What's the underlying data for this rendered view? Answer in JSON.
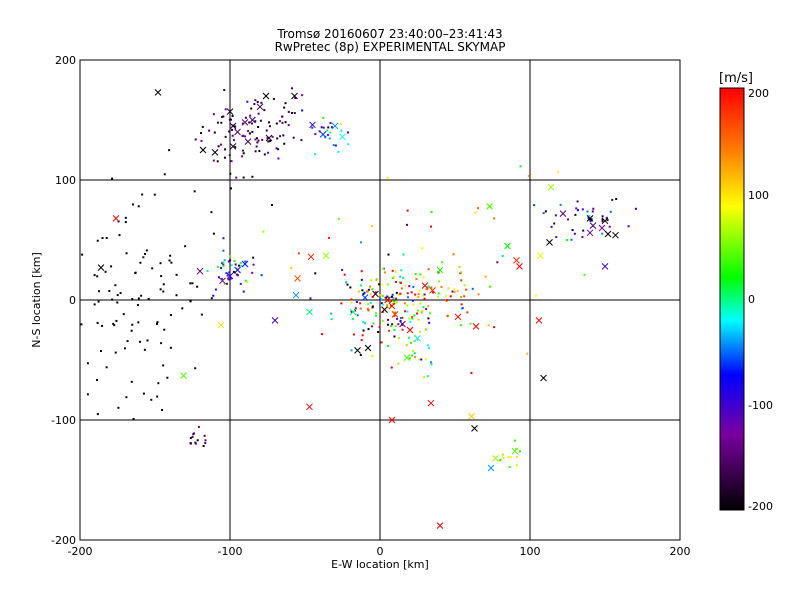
{
  "chart_data": {
    "type": "scatter",
    "title": "Tromsø 20160607 23:40:00–23:41:43",
    "subtitle": "RwPretec (8p) EXPERIMENTAL SKYMAP",
    "xlabel": "E-W location [km]",
    "ylabel": "N-S location [km]",
    "xlim": [
      -200,
      200
    ],
    "ylim": [
      -200,
      200
    ],
    "x_ticks": [
      "-200",
      "-100",
      "0",
      "100",
      "200"
    ],
    "y_ticks": [
      "-200",
      "-100",
      "0",
      "100",
      "200"
    ],
    "grid_lines": [
      -100,
      0,
      100
    ],
    "colorbar": {
      "unit_label": "[m/s]",
      "range": [
        -200,
        200
      ],
      "ticks": [
        "200",
        "100",
        "0",
        "-100",
        "-200"
      ],
      "scale": "black-purple-blue-cyan-green-yellow-red"
    },
    "markers": {
      "dot": "small point",
      "cross": "x"
    },
    "points": [
      {
        "x": -148,
        "y": 173,
        "v": -200,
        "m": "x"
      },
      {
        "x": -100,
        "y": 157,
        "v": -180,
        "m": "x"
      },
      {
        "x": -98,
        "y": 145,
        "v": -170,
        "m": "x"
      },
      {
        "x": -95,
        "y": 140,
        "v": -150,
        "m": "x"
      },
      {
        "x": -90,
        "y": 148,
        "v": -140,
        "m": "x"
      },
      {
        "x": -85,
        "y": 150,
        "v": -160,
        "m": "x"
      },
      {
        "x": -80,
        "y": 161,
        "v": -170,
        "m": "x"
      },
      {
        "x": -76,
        "y": 170,
        "v": -200,
        "m": "x"
      },
      {
        "x": -57,
        "y": 170,
        "v": -200,
        "m": "x"
      },
      {
        "x": -45,
        "y": 146,
        "v": -100,
        "m": "x"
      },
      {
        "x": -38,
        "y": 138,
        "v": -60,
        "m": "x"
      },
      {
        "x": -30,
        "y": 145,
        "v": -40,
        "m": "x"
      },
      {
        "x": -25,
        "y": 136,
        "v": -20,
        "m": "x"
      },
      {
        "x": -118,
        "y": 125,
        "v": -200,
        "m": "x"
      },
      {
        "x": -110,
        "y": 123,
        "v": -200,
        "m": "x"
      },
      {
        "x": -98,
        "y": 128,
        "v": -180,
        "m": "x"
      },
      {
        "x": -88,
        "y": 132,
        "v": -160,
        "m": "x"
      },
      {
        "x": -74,
        "y": 135,
        "v": -180,
        "m": "x"
      },
      {
        "x": -176,
        "y": 68,
        "v": 200,
        "m": "x"
      },
      {
        "x": -186,
        "y": 27,
        "v": -200,
        "m": "x"
      },
      {
        "x": -100,
        "y": 20,
        "v": -100,
        "m": "x"
      },
      {
        "x": -95,
        "y": 25,
        "v": -90,
        "m": "x"
      },
      {
        "x": -90,
        "y": 30,
        "v": -70,
        "m": "x"
      },
      {
        "x": -105,
        "y": 16,
        "v": -130,
        "m": "x"
      },
      {
        "x": -120,
        "y": 24,
        "v": -150,
        "m": "x"
      },
      {
        "x": -56,
        "y": 4,
        "v": -40,
        "m": "x"
      },
      {
        "x": -47,
        "y": -10,
        "v": 0,
        "m": "x"
      },
      {
        "x": -55,
        "y": 18,
        "v": 160,
        "m": "x"
      },
      {
        "x": -46,
        "y": 36,
        "v": 180,
        "m": "x"
      },
      {
        "x": -36,
        "y": 37,
        "v": 60,
        "m": "x"
      },
      {
        "x": -70,
        "y": -17,
        "v": -100,
        "m": "x"
      },
      {
        "x": -106,
        "y": -21,
        "v": 100,
        "m": "x"
      },
      {
        "x": -131,
        "y": -63,
        "v": 40,
        "m": "x"
      },
      {
        "x": -47,
        "y": -89,
        "v": 200,
        "m": "x"
      },
      {
        "x": -15,
        "y": -42,
        "v": -200,
        "m": "x"
      },
      {
        "x": -8,
        "y": -40,
        "v": -200,
        "m": "x"
      },
      {
        "x": 8,
        "y": -100,
        "v": 200,
        "m": "x"
      },
      {
        "x": 34,
        "y": -86,
        "v": 200,
        "m": "x"
      },
      {
        "x": 61,
        "y": -97,
        "v": 110,
        "m": "x"
      },
      {
        "x": 63,
        "y": -107,
        "v": -200,
        "m": "x"
      },
      {
        "x": 90,
        "y": -126,
        "v": 40,
        "m": "x"
      },
      {
        "x": 77,
        "y": -132,
        "v": 60,
        "m": "x"
      },
      {
        "x": 74,
        "y": -140,
        "v": -40,
        "m": "x"
      },
      {
        "x": 40,
        "y": -188,
        "v": 200,
        "m": "x"
      },
      {
        "x": 73,
        "y": 78,
        "v": 40,
        "m": "x"
      },
      {
        "x": 85,
        "y": 45,
        "v": 20,
        "m": "x"
      },
      {
        "x": 91,
        "y": 33,
        "v": 180,
        "m": "x"
      },
      {
        "x": 93,
        "y": 28,
        "v": 200,
        "m": "x"
      },
      {
        "x": 114,
        "y": 94,
        "v": 60,
        "m": "x"
      },
      {
        "x": 107,
        "y": 37,
        "v": 80,
        "m": "x"
      },
      {
        "x": 113,
        "y": 48,
        "v": -200,
        "m": "x"
      },
      {
        "x": 122,
        "y": 72,
        "v": -150,
        "m": "x"
      },
      {
        "x": 140,
        "y": 68,
        "v": -200,
        "m": "x"
      },
      {
        "x": 142,
        "y": 62,
        "v": -160,
        "m": "x"
      },
      {
        "x": 148,
        "y": 60,
        "v": -130,
        "m": "x"
      },
      {
        "x": 150,
        "y": 66,
        "v": -200,
        "m": "x"
      },
      {
        "x": 152,
        "y": 55,
        "v": -200,
        "m": "x"
      },
      {
        "x": 157,
        "y": 54,
        "v": -200,
        "m": "x"
      },
      {
        "x": 140,
        "y": 56,
        "v": -120,
        "m": "x"
      },
      {
        "x": 150,
        "y": 28,
        "v": -110,
        "m": "x"
      },
      {
        "x": 106,
        "y": -17,
        "v": 200,
        "m": "x"
      },
      {
        "x": 109,
        "y": -65,
        "v": -200,
        "m": "x"
      },
      {
        "x": 5,
        "y": 0,
        "v": 200,
        "m": "x"
      },
      {
        "x": 8,
        "y": -5,
        "v": 190,
        "m": "x"
      },
      {
        "x": 10,
        "y": -12,
        "v": 180,
        "m": "x"
      },
      {
        "x": 3,
        "y": -8,
        "v": -200,
        "m": "x"
      },
      {
        "x": -3,
        "y": 5,
        "v": -180,
        "m": "x"
      },
      {
        "x": 15,
        "y": -20,
        "v": -140,
        "m": "x"
      },
      {
        "x": 20,
        "y": -25,
        "v": 200,
        "m": "x"
      },
      {
        "x": 30,
        "y": 12,
        "v": 200,
        "m": "x"
      },
      {
        "x": 35,
        "y": 8,
        "v": 180,
        "m": "x"
      },
      {
        "x": 52,
        "y": -14,
        "v": 200,
        "m": "x"
      },
      {
        "x": 64,
        "y": -22,
        "v": 200,
        "m": "x"
      },
      {
        "x": 18,
        "y": -48,
        "v": 40,
        "m": "x"
      },
      {
        "x": -10,
        "y": 2,
        "v": -60,
        "m": "x"
      },
      {
        "x": -18,
        "y": -10,
        "v": 0,
        "m": "x"
      },
      {
        "x": 25,
        "y": -32,
        "v": -20,
        "m": "x"
      },
      {
        "x": 40,
        "y": 25,
        "v": 30,
        "m": "x"
      }
    ],
    "dot_clusters": [
      {
        "cx": -95,
        "cy": 135,
        "sx": 14,
        "sy": 16,
        "n": 70,
        "v": -175,
        "vs": 25
      },
      {
        "cx": -70,
        "cy": 150,
        "sx": 12,
        "sy": 14,
        "n": 35,
        "v": -160,
        "vs": 40
      },
      {
        "cx": -35,
        "cy": 140,
        "sx": 8,
        "sy": 8,
        "n": 25,
        "v": -60,
        "vs": 60
      },
      {
        "cx": -165,
        "cy": 0,
        "sx": 24,
        "sy": 45,
        "n": 110,
        "v": -200,
        "vs": 8
      },
      {
        "cx": -100,
        "cy": 22,
        "sx": 10,
        "sy": 9,
        "n": 45,
        "v": -70,
        "vs": 80
      },
      {
        "cx": -122,
        "cy": -118,
        "sx": 4,
        "sy": 5,
        "n": 14,
        "v": -170,
        "vs": 25
      },
      {
        "cx": 5,
        "cy": -5,
        "sx": 18,
        "sy": 18,
        "n": 170,
        "v": 60,
        "vs": 160
      },
      {
        "cx": 40,
        "cy": 10,
        "sx": 14,
        "sy": 12,
        "n": 40,
        "v": 140,
        "vs": 80
      },
      {
        "cx": 20,
        "cy": -45,
        "sx": 8,
        "sy": 10,
        "n": 20,
        "v": 20,
        "vs": 50
      },
      {
        "cx": 135,
        "cy": 68,
        "sx": 16,
        "sy": 8,
        "n": 40,
        "v": -130,
        "vs": 60
      },
      {
        "cx": 85,
        "cy": -130,
        "sx": 6,
        "sy": 6,
        "n": 12,
        "v": 70,
        "vs": 40
      },
      {
        "cx": 60,
        "cy": 20,
        "sx": 40,
        "sy": 50,
        "n": 30,
        "v": 100,
        "vs": 110
      },
      {
        "cx": -45,
        "cy": 40,
        "sx": 30,
        "sy": 30,
        "n": 15,
        "v": 0,
        "vs": 150
      }
    ]
  }
}
